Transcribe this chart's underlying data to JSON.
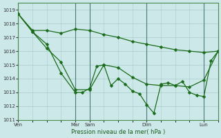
{
  "background_color": "#cce8e8",
  "grid_color": "#aacccc",
  "line_color": "#1a6b1a",
  "marker_color": "#1a6b1a",
  "xlabel_text": "Pression niveau de la mer( hPa )",
  "xtick_labels": [
    "Ven",
    "Mar",
    "Sam",
    "Dim",
    "Lun"
  ],
  "xtick_positions": [
    0,
    24,
    30,
    54,
    78
  ],
  "xlim": [
    0,
    84
  ],
  "ylim": [
    1011,
    1019.5
  ],
  "yticks": [
    1011,
    1012,
    1013,
    1014,
    1015,
    1016,
    1017,
    1018,
    1019
  ],
  "series1_x": [
    0,
    6,
    12,
    18,
    24,
    30,
    36,
    42,
    48,
    54,
    60,
    66,
    72,
    78,
    84
  ],
  "series1_y": [
    1018.7,
    1017.5,
    1017.5,
    1017.3,
    1017.6,
    1017.5,
    1017.2,
    1017.0,
    1016.7,
    1016.5,
    1016.3,
    1016.1,
    1016.0,
    1015.9,
    1016.0
  ],
  "series2_x": [
    0,
    6,
    12,
    18,
    24,
    30,
    36,
    42,
    48,
    54,
    60,
    66,
    72,
    78,
    84
  ],
  "series2_y": [
    1018.7,
    1017.4,
    1016.2,
    1015.2,
    1013.2,
    1013.2,
    1015.0,
    1014.8,
    1014.1,
    1013.6,
    1013.5,
    1013.5,
    1013.4,
    1013.9,
    1016.0
  ],
  "series3_x": [
    0,
    6,
    12,
    18,
    24,
    27,
    30,
    33,
    36,
    39,
    42,
    45,
    48,
    51,
    54,
    57,
    60,
    63,
    66,
    69,
    72,
    75,
    78,
    81,
    84
  ],
  "series3_y": [
    1018.7,
    1017.4,
    1016.5,
    1014.4,
    1013.0,
    1013.0,
    1013.3,
    1014.9,
    1015.0,
    1013.5,
    1014.0,
    1013.6,
    1013.1,
    1012.9,
    1012.1,
    1011.5,
    1013.6,
    1013.7,
    1013.5,
    1013.8,
    1013.0,
    1012.8,
    1012.7,
    1015.3,
    1016.0
  ]
}
